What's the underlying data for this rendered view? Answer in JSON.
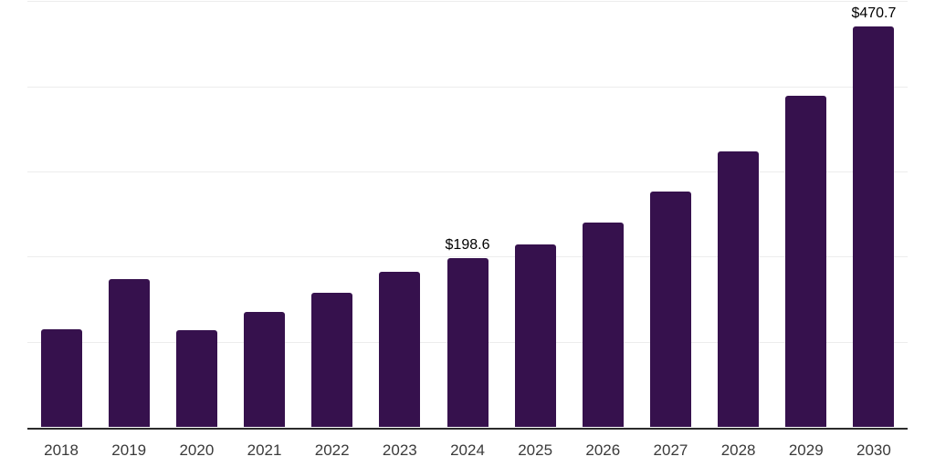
{
  "chart_data": {
    "type": "bar",
    "title": "",
    "xlabel": "",
    "ylabel": "",
    "categories": [
      "2018",
      "2019",
      "2020",
      "2021",
      "2022",
      "2023",
      "2024",
      "2025",
      "2026",
      "2027",
      "2028",
      "2029",
      "2030"
    ],
    "values": [
      115,
      174,
      114,
      135,
      158,
      183,
      198.6,
      215,
      241,
      277,
      324,
      389,
      470.7
    ],
    "bar_labels": [
      "",
      "",
      "",
      "",
      "",
      "",
      "$198.6",
      "",
      "",
      "",
      "",
      "",
      "$470.7"
    ],
    "ylim": [
      0,
      500
    ],
    "ytick_step": 100,
    "y_axis_labels_visible": false,
    "grid": "horizontal",
    "legend": "none",
    "colors": {
      "bar": "#36114D",
      "gridline": "#ededed",
      "axis_line": "#2b2b2b",
      "tick_label": "#3a3a3a",
      "data_label": "#000000",
      "background": "#ffffff"
    }
  }
}
